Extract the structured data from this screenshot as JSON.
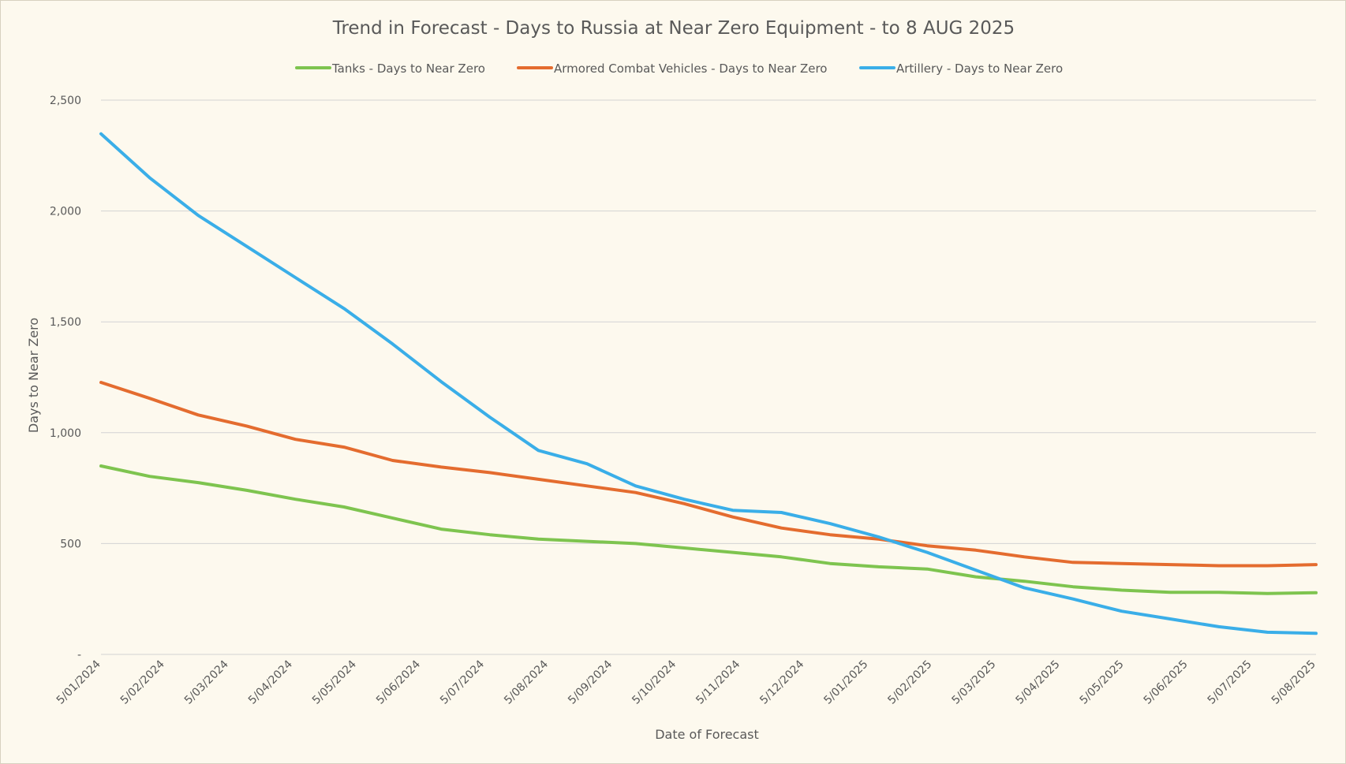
{
  "chart_data": {
    "type": "line",
    "title": "Trend in Forecast - Days to Russia at Near Zero Equipment - to 8 AUG 2025",
    "xlabel": "Date of Forecast",
    "ylabel": "Days to Near Zero",
    "ylim": [
      0,
      2500
    ],
    "yticks": [
      0,
      500,
      1000,
      1500,
      2000,
      2500
    ],
    "ytick_labels": [
      "-",
      "500",
      "1,000",
      "1,500",
      "2,000",
      "2,500"
    ],
    "xtick_labels": [
      "5/01/2024",
      "5/02/2024",
      "5/03/2024",
      "5/04/2024",
      "5/05/2024",
      "5/06/2024",
      "5/07/2024",
      "5/08/2024",
      "5/09/2024",
      "5/10/2024",
      "5/11/2024",
      "5/12/2024",
      "5/01/2025",
      "5/02/2025",
      "5/03/2025",
      "5/04/2025",
      "5/05/2025",
      "5/06/2025",
      "5/07/2025",
      "5/08/2025"
    ],
    "grid": true,
    "legend_position": "top",
    "series": [
      {
        "name": "Tanks - Days to Near Zero",
        "color": "#7ec44f",
        "values": [
          850,
          803,
          775,
          740,
          700,
          665,
          615,
          565,
          540,
          520,
          510,
          500,
          480,
          460,
          440,
          410,
          395,
          385,
          350,
          330,
          305,
          290,
          280,
          280,
          275,
          278
        ]
      },
      {
        "name": "Armored Combat Vehicles - Days to Near Zero",
        "color": "#e46c2f",
        "values": [
          1227,
          1155,
          1080,
          1030,
          970,
          935,
          875,
          845,
          820,
          790,
          760,
          730,
          680,
          620,
          570,
          540,
          520,
          490,
          470,
          440,
          415,
          410,
          405,
          400,
          400,
          405
        ]
      },
      {
        "name": "Artillery - Days to Near Zero",
        "color": "#3aaee8",
        "values": [
          2348,
          2150,
          1980,
          1840,
          1700,
          1560,
          1400,
          1230,
          1070,
          920,
          860,
          760,
          700,
          650,
          640,
          590,
          530,
          460,
          380,
          300,
          250,
          195,
          160,
          125,
          100,
          95
        ]
      }
    ]
  }
}
